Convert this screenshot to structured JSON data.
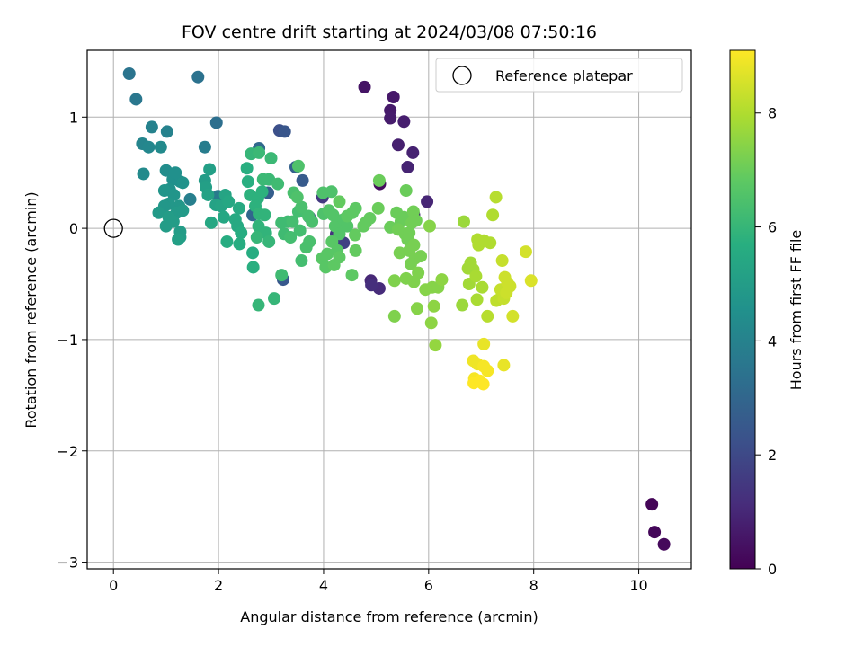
{
  "chart_data": {
    "type": "scatter",
    "title": "FOV centre drift starting at 2024/03/08 07:50:16",
    "xlabel": "Angular distance from reference (arcmin)",
    "ylabel": "Rotation from reference (arcmin)",
    "xlim": [
      -0.5,
      11.0
    ],
    "ylim": [
      -3.06,
      1.6
    ],
    "xticks": [
      0,
      2,
      4,
      6,
      8,
      10
    ],
    "yticks": [
      -3,
      -2,
      -1,
      0,
      1
    ],
    "xtick_labels": [
      "0",
      "2",
      "4",
      "6",
      "8",
      "10"
    ],
    "ytick_labels": [
      "−3",
      "−2",
      "−1",
      "0",
      "1"
    ],
    "grid": true,
    "colormap": "viridis",
    "colorbar": {
      "label": "Hours from first FF file",
      "range": [
        0,
        9.1
      ],
      "ticks": [
        0,
        2,
        4,
        6,
        8
      ],
      "tick_labels": [
        "0",
        "2",
        "4",
        "6",
        "8"
      ]
    },
    "legend": {
      "position": "top-right",
      "entries": [
        "Reference platepar"
      ]
    },
    "reference_point": {
      "x": 0,
      "y": 0
    },
    "points": [
      {
        "x": 10.25,
        "y": -2.48,
        "c": 0.1
      },
      {
        "x": 10.3,
        "y": -2.73,
        "c": 0.15
      },
      {
        "x": 10.48,
        "y": -2.84,
        "c": 0.2
      },
      {
        "x": 5.07,
        "y": 0.4,
        "c": 0.3
      },
      {
        "x": 4.78,
        "y": 1.27,
        "c": 0.5
      },
      {
        "x": 5.33,
        "y": 1.18,
        "c": 0.6
      },
      {
        "x": 5.27,
        "y": 1.06,
        "c": 0.65
      },
      {
        "x": 5.27,
        "y": 0.99,
        "c": 0.7
      },
      {
        "x": 5.53,
        "y": 0.96,
        "c": 0.75
      },
      {
        "x": 5.42,
        "y": 0.75,
        "c": 0.8
      },
      {
        "x": 5.7,
        "y": 0.68,
        "c": 0.85
      },
      {
        "x": 5.6,
        "y": 0.55,
        "c": 0.9
      },
      {
        "x": 5.97,
        "y": 0.24,
        "c": 0.95
      },
      {
        "x": 5.72,
        "y": 0.12,
        "c": 1.0
      },
      {
        "x": 4.9,
        "y": -0.47,
        "c": 1.0
      },
      {
        "x": 5.06,
        "y": -0.54,
        "c": 1.1
      },
      {
        "x": 4.91,
        "y": -0.51,
        "c": 1.2
      },
      {
        "x": 4.24,
        "y": -0.05,
        "c": 1.3
      },
      {
        "x": 3.98,
        "y": 0.28,
        "c": 1.5
      },
      {
        "x": 4.38,
        "y": -0.13,
        "c": 1.7
      },
      {
        "x": 3.73,
        "y": 0.1,
        "c": 1.9
      },
      {
        "x": 3.16,
        "y": 0.88,
        "c": 2.2
      },
      {
        "x": 3.26,
        "y": 0.87,
        "c": 2.4
      },
      {
        "x": 3.23,
        "y": -0.46,
        "c": 2.5
      },
      {
        "x": 3.6,
        "y": 0.43,
        "c": 2.6
      },
      {
        "x": 2.94,
        "y": 0.32,
        "c": 2.7
      },
      {
        "x": 3.47,
        "y": 0.55,
        "c": 2.8
      },
      {
        "x": 2.65,
        "y": 0.12,
        "c": 3.0
      },
      {
        "x": 2.77,
        "y": 0.72,
        "c": 3.1
      },
      {
        "x": 1.96,
        "y": 0.95,
        "c": 3.3
      },
      {
        "x": 1.61,
        "y": 1.36,
        "c": 3.4
      },
      {
        "x": 0.3,
        "y": 1.39,
        "c": 3.5
      },
      {
        "x": 0.43,
        "y": 1.16,
        "c": 3.6
      },
      {
        "x": 1.99,
        "y": 0.29,
        "c": 3.7
      },
      {
        "x": 1.74,
        "y": 0.73,
        "c": 3.8
      },
      {
        "x": 1.46,
        "y": 0.26,
        "c": 3.9
      },
      {
        "x": 1.02,
        "y": 0.87,
        "c": 4.0
      },
      {
        "x": 0.73,
        "y": 0.91,
        "c": 4.0
      },
      {
        "x": 0.55,
        "y": 0.76,
        "c": 4.1
      },
      {
        "x": 0.67,
        "y": 0.73,
        "c": 4.2
      },
      {
        "x": 0.9,
        "y": 0.73,
        "c": 4.3
      },
      {
        "x": 0.57,
        "y": 0.49,
        "c": 4.3
      },
      {
        "x": 1.0,
        "y": 0.52,
        "c": 4.4
      },
      {
        "x": 1.13,
        "y": 0.44,
        "c": 4.5
      },
      {
        "x": 1.27,
        "y": 0.42,
        "c": 4.5
      },
      {
        "x": 1.32,
        "y": 0.41,
        "c": 4.6
      },
      {
        "x": 1.18,
        "y": 0.5,
        "c": 4.5
      },
      {
        "x": 1.07,
        "y": 0.35,
        "c": 4.6
      },
      {
        "x": 0.97,
        "y": 0.34,
        "c": 4.7
      },
      {
        "x": 1.15,
        "y": 0.3,
        "c": 4.7
      },
      {
        "x": 1.25,
        "y": 0.2,
        "c": 4.8
      },
      {
        "x": 1.05,
        "y": 0.22,
        "c": 4.8
      },
      {
        "x": 0.97,
        "y": 0.2,
        "c": 4.8
      },
      {
        "x": 1.2,
        "y": 0.14,
        "c": 4.9
      },
      {
        "x": 1.32,
        "y": 0.16,
        "c": 4.9
      },
      {
        "x": 0.86,
        "y": 0.14,
        "c": 4.9
      },
      {
        "x": 1.05,
        "y": 0.1,
        "c": 5.0
      },
      {
        "x": 1.14,
        "y": 0.06,
        "c": 5.0
      },
      {
        "x": 1.0,
        "y": 0.02,
        "c": 5.0
      },
      {
        "x": 1.27,
        "y": -0.03,
        "c": 5.0
      },
      {
        "x": 1.27,
        "y": -0.08,
        "c": 5.0
      },
      {
        "x": 1.23,
        "y": -0.1,
        "c": 5.1
      },
      {
        "x": 1.74,
        "y": 0.43,
        "c": 5.0
      },
      {
        "x": 1.76,
        "y": 0.37,
        "c": 5.1
      },
      {
        "x": 1.83,
        "y": 0.53,
        "c": 5.1
      },
      {
        "x": 1.8,
        "y": 0.3,
        "c": 5.2
      },
      {
        "x": 1.95,
        "y": 0.21,
        "c": 5.2
      },
      {
        "x": 2.05,
        "y": 0.2,
        "c": 5.3
      },
      {
        "x": 2.13,
        "y": 0.3,
        "c": 5.3
      },
      {
        "x": 2.19,
        "y": 0.24,
        "c": 5.4
      },
      {
        "x": 2.1,
        "y": 0.1,
        "c": 5.4
      },
      {
        "x": 1.86,
        "y": 0.05,
        "c": 5.4
      },
      {
        "x": 2.39,
        "y": 0.18,
        "c": 5.5
      },
      {
        "x": 2.32,
        "y": 0.08,
        "c": 5.5
      },
      {
        "x": 2.36,
        "y": 0.02,
        "c": 5.5
      },
      {
        "x": 2.43,
        "y": -0.04,
        "c": 5.6
      },
      {
        "x": 2.16,
        "y": -0.12,
        "c": 5.6
      },
      {
        "x": 2.4,
        "y": -0.14,
        "c": 5.6
      },
      {
        "x": 2.65,
        "y": -0.22,
        "c": 5.6
      },
      {
        "x": 2.66,
        "y": -0.35,
        "c": 5.7
      },
      {
        "x": 2.56,
        "y": 0.42,
        "c": 5.7
      },
      {
        "x": 2.54,
        "y": 0.54,
        "c": 5.7
      },
      {
        "x": 2.6,
        "y": 0.3,
        "c": 5.8
      },
      {
        "x": 2.75,
        "y": 0.27,
        "c": 5.8
      },
      {
        "x": 2.83,
        "y": 0.33,
        "c": 5.8
      },
      {
        "x": 2.7,
        "y": 0.2,
        "c": 5.8
      },
      {
        "x": 2.77,
        "y": 0.13,
        "c": 5.9
      },
      {
        "x": 2.88,
        "y": 0.12,
        "c": 5.9
      },
      {
        "x": 2.76,
        "y": 0.02,
        "c": 5.9
      },
      {
        "x": 2.9,
        "y": -0.04,
        "c": 5.9
      },
      {
        "x": 2.73,
        "y": -0.08,
        "c": 6.0
      },
      {
        "x": 2.96,
        "y": -0.12,
        "c": 6.0
      },
      {
        "x": 2.76,
        "y": -0.69,
        "c": 6.0
      },
      {
        "x": 3.06,
        "y": -0.63,
        "c": 6.0
      },
      {
        "x": 2.62,
        "y": 0.67,
        "c": 6.0
      },
      {
        "x": 2.77,
        "y": 0.68,
        "c": 6.1
      },
      {
        "x": 3.0,
        "y": 0.63,
        "c": 6.1
      },
      {
        "x": 2.85,
        "y": 0.44,
        "c": 6.1
      },
      {
        "x": 2.96,
        "y": 0.44,
        "c": 6.1
      },
      {
        "x": 3.13,
        "y": 0.4,
        "c": 6.2
      },
      {
        "x": 3.2,
        "y": -0.42,
        "c": 6.2
      },
      {
        "x": 3.2,
        "y": 0.05,
        "c": 6.2
      },
      {
        "x": 3.32,
        "y": 0.06,
        "c": 6.2
      },
      {
        "x": 3.25,
        "y": -0.05,
        "c": 6.2
      },
      {
        "x": 3.37,
        "y": -0.08,
        "c": 6.3
      },
      {
        "x": 3.52,
        "y": 0.15,
        "c": 6.3
      },
      {
        "x": 3.55,
        "y": -0.02,
        "c": 6.3
      },
      {
        "x": 3.41,
        "y": 0.06,
        "c": 6.3
      },
      {
        "x": 3.58,
        "y": -0.29,
        "c": 6.3
      },
      {
        "x": 3.67,
        "y": -0.17,
        "c": 6.4
      },
      {
        "x": 3.73,
        "y": -0.12,
        "c": 6.4
      },
      {
        "x": 3.58,
        "y": 0.19,
        "c": 6.4
      },
      {
        "x": 3.71,
        "y": 0.11,
        "c": 6.4
      },
      {
        "x": 3.78,
        "y": 0.06,
        "c": 6.4
      },
      {
        "x": 3.43,
        "y": 0.32,
        "c": 6.4
      },
      {
        "x": 3.5,
        "y": 0.28,
        "c": 6.5
      },
      {
        "x": 3.52,
        "y": 0.56,
        "c": 6.5
      },
      {
        "x": 3.99,
        "y": 0.32,
        "c": 6.5
      },
      {
        "x": 4.15,
        "y": 0.33,
        "c": 6.5
      },
      {
        "x": 4.0,
        "y": 0.13,
        "c": 6.5
      },
      {
        "x": 4.1,
        "y": 0.16,
        "c": 6.6
      },
      {
        "x": 4.18,
        "y": 0.12,
        "c": 6.6
      },
      {
        "x": 4.28,
        "y": 0.07,
        "c": 6.6
      },
      {
        "x": 4.22,
        "y": 0.02,
        "c": 6.6
      },
      {
        "x": 4.38,
        "y": 0.08,
        "c": 6.6
      },
      {
        "x": 4.45,
        "y": 0.02,
        "c": 6.6
      },
      {
        "x": 4.3,
        "y": -0.05,
        "c": 6.6
      },
      {
        "x": 4.16,
        "y": -0.12,
        "c": 6.7
      },
      {
        "x": 4.26,
        "y": -0.2,
        "c": 6.7
      },
      {
        "x": 4.07,
        "y": -0.23,
        "c": 6.7
      },
      {
        "x": 3.97,
        "y": -0.27,
        "c": 6.7
      },
      {
        "x": 4.04,
        "y": -0.35,
        "c": 6.7
      },
      {
        "x": 4.2,
        "y": -0.33,
        "c": 6.8
      },
      {
        "x": 4.3,
        "y": -0.26,
        "c": 6.8
      },
      {
        "x": 4.54,
        "y": -0.42,
        "c": 6.8
      },
      {
        "x": 4.45,
        "y": 0.11,
        "c": 6.8
      },
      {
        "x": 4.55,
        "y": 0.14,
        "c": 6.8
      },
      {
        "x": 4.61,
        "y": 0.18,
        "c": 6.8
      },
      {
        "x": 4.3,
        "y": 0.24,
        "c": 6.9
      },
      {
        "x": 4.6,
        "y": -0.06,
        "c": 6.9
      },
      {
        "x": 4.61,
        "y": -0.2,
        "c": 6.9
      },
      {
        "x": 4.8,
        "y": 0.05,
        "c": 6.9
      },
      {
        "x": 4.76,
        "y": 0.02,
        "c": 6.9
      },
      {
        "x": 4.88,
        "y": 0.09,
        "c": 6.9
      },
      {
        "x": 5.04,
        "y": 0.18,
        "c": 7.0
      },
      {
        "x": 5.06,
        "y": 0.43,
        "c": 7.0
      },
      {
        "x": 5.27,
        "y": 0.01,
        "c": 7.0
      },
      {
        "x": 5.39,
        "y": 0.14,
        "c": 7.0
      },
      {
        "x": 5.47,
        "y": 0.06,
        "c": 7.0
      },
      {
        "x": 5.53,
        "y": 0.1,
        "c": 7.0
      },
      {
        "x": 5.57,
        "y": 0.34,
        "c": 7.0
      },
      {
        "x": 5.42,
        "y": -0.01,
        "c": 7.1
      },
      {
        "x": 5.55,
        "y": -0.05,
        "c": 7.1
      },
      {
        "x": 5.63,
        "y": -0.04,
        "c": 7.1
      },
      {
        "x": 5.68,
        "y": 0.05,
        "c": 7.1
      },
      {
        "x": 5.71,
        "y": 0.15,
        "c": 7.1
      },
      {
        "x": 5.76,
        "y": 0.07,
        "c": 7.1
      },
      {
        "x": 5.6,
        "y": -0.1,
        "c": 7.1
      },
      {
        "x": 5.72,
        "y": -0.15,
        "c": 7.2
      },
      {
        "x": 5.63,
        "y": -0.2,
        "c": 7.2
      },
      {
        "x": 5.45,
        "y": -0.22,
        "c": 7.2
      },
      {
        "x": 5.74,
        "y": -0.27,
        "c": 7.2
      },
      {
        "x": 5.85,
        "y": -0.25,
        "c": 7.2
      },
      {
        "x": 5.66,
        "y": -0.32,
        "c": 7.2
      },
      {
        "x": 5.8,
        "y": -0.4,
        "c": 7.3
      },
      {
        "x": 5.72,
        "y": -0.48,
        "c": 7.3
      },
      {
        "x": 5.57,
        "y": -0.45,
        "c": 7.3
      },
      {
        "x": 5.35,
        "y": -0.47,
        "c": 7.3
      },
      {
        "x": 5.35,
        "y": -0.79,
        "c": 7.3
      },
      {
        "x": 5.78,
        "y": -0.72,
        "c": 7.4
      },
      {
        "x": 5.94,
        "y": -0.55,
        "c": 7.4
      },
      {
        "x": 6.02,
        "y": 0.02,
        "c": 7.4
      },
      {
        "x": 6.07,
        "y": -0.53,
        "c": 7.4
      },
      {
        "x": 6.18,
        "y": -0.53,
        "c": 7.4
      },
      {
        "x": 6.25,
        "y": -0.46,
        "c": 7.5
      },
      {
        "x": 6.1,
        "y": -0.7,
        "c": 7.5
      },
      {
        "x": 6.05,
        "y": -0.85,
        "c": 7.5
      },
      {
        "x": 6.13,
        "y": -1.05,
        "c": 7.6
      },
      {
        "x": 6.67,
        "y": 0.06,
        "c": 7.7
      },
      {
        "x": 6.64,
        "y": -0.69,
        "c": 7.7
      },
      {
        "x": 6.8,
        "y": -0.31,
        "c": 7.8
      },
      {
        "x": 6.75,
        "y": -0.36,
        "c": 7.8
      },
      {
        "x": 6.85,
        "y": -0.37,
        "c": 7.8
      },
      {
        "x": 6.77,
        "y": -0.5,
        "c": 7.8
      },
      {
        "x": 6.9,
        "y": -0.43,
        "c": 7.9
      },
      {
        "x": 6.92,
        "y": -0.64,
        "c": 7.9
      },
      {
        "x": 7.02,
        "y": -0.53,
        "c": 7.9
      },
      {
        "x": 6.95,
        "y": -0.15,
        "c": 8.0
      },
      {
        "x": 6.93,
        "y": -0.1,
        "c": 8.0
      },
      {
        "x": 7.05,
        "y": -0.11,
        "c": 8.0
      },
      {
        "x": 7.17,
        "y": -0.13,
        "c": 8.0
      },
      {
        "x": 7.22,
        "y": 0.12,
        "c": 8.0
      },
      {
        "x": 7.28,
        "y": 0.28,
        "c": 8.1
      },
      {
        "x": 7.12,
        "y": -0.79,
        "c": 8.1
      },
      {
        "x": 7.29,
        "y": -0.65,
        "c": 8.2
      },
      {
        "x": 7.38,
        "y": -0.62,
        "c": 8.2
      },
      {
        "x": 7.37,
        "y": -0.55,
        "c": 8.3
      },
      {
        "x": 7.43,
        "y": -0.63,
        "c": 8.3
      },
      {
        "x": 7.48,
        "y": -0.58,
        "c": 8.4
      },
      {
        "x": 7.5,
        "y": -0.49,
        "c": 8.4
      },
      {
        "x": 7.45,
        "y": -0.44,
        "c": 8.4
      },
      {
        "x": 7.55,
        "y": -0.52,
        "c": 8.4
      },
      {
        "x": 7.4,
        "y": -0.29,
        "c": 8.3
      },
      {
        "x": 7.6,
        "y": -0.79,
        "c": 8.5
      },
      {
        "x": 7.85,
        "y": -0.21,
        "c": 8.5
      },
      {
        "x": 7.95,
        "y": -0.47,
        "c": 8.6
      },
      {
        "x": 7.43,
        "y": -1.23,
        "c": 8.8
      },
      {
        "x": 7.05,
        "y": -1.04,
        "c": 8.8
      },
      {
        "x": 6.85,
        "y": -1.19,
        "c": 8.9
      },
      {
        "x": 6.93,
        "y": -1.22,
        "c": 8.9
      },
      {
        "x": 7.05,
        "y": -1.24,
        "c": 9.0
      },
      {
        "x": 7.12,
        "y": -1.28,
        "c": 9.0
      },
      {
        "x": 6.87,
        "y": -1.35,
        "c": 9.0
      },
      {
        "x": 6.86,
        "y": -1.39,
        "c": 9.1
      },
      {
        "x": 6.97,
        "y": -1.37,
        "c": 9.1
      },
      {
        "x": 7.04,
        "y": -1.4,
        "c": 9.1
      }
    ]
  }
}
